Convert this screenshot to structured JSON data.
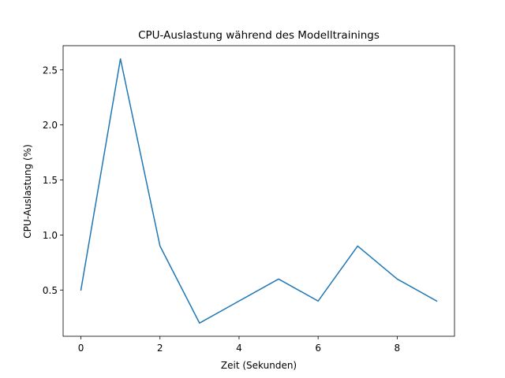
{
  "chart_data": {
    "type": "line",
    "title": "CPU-Auslastung während des Modelltrainings",
    "xlabel": "Zeit (Sekunden)",
    "ylabel": "CPU-Auslastung (%)",
    "x": [
      0,
      1,
      2,
      3,
      4,
      5,
      6,
      7,
      8,
      9
    ],
    "series": [
      {
        "values": [
          0.5,
          2.6,
          0.9,
          0.2,
          0.4,
          0.6,
          0.4,
          0.9,
          0.6,
          0.4
        ]
      }
    ],
    "xlim": [
      -0.45,
      9.45
    ],
    "ylim": [
      0.08,
      2.72
    ],
    "xticks": [
      0,
      2,
      4,
      6,
      8
    ],
    "xtick_labels": [
      "0",
      "2",
      "4",
      "6",
      "8"
    ],
    "yticks": [
      0.5,
      1.0,
      1.5,
      2.0,
      2.5
    ],
    "ytick_labels": [
      "0.5",
      "1.0",
      "1.5",
      "2.0",
      "2.5"
    ],
    "grid": false,
    "colors": {
      "line": "#1f77b4",
      "axes": "#000000"
    }
  }
}
